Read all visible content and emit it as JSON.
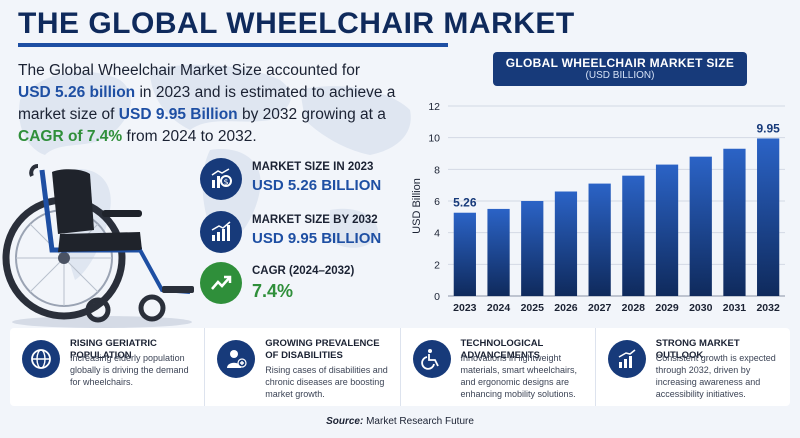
{
  "title": "THE GLOBAL WHEELCHAIR MARKET",
  "intro": {
    "p1": "The Global Wheelchair Market Size accounted for",
    "v1": "USD 5.26 billion",
    "p2": " in 2023 and is estimated to achieve a market size of ",
    "v2": "USD 9.95 Billion",
    "p3": " by 2032 growing at a ",
    "v3": "CAGR of 7.4%",
    "p4": " from 2024 to 2032."
  },
  "stats": [
    {
      "label": "MARKET SIZE IN 2023",
      "value": "USD 5.26 BILLION",
      "icon": "money-chart-icon",
      "color": "#173a7a"
    },
    {
      "label": "MARKET SIZE BY 2032",
      "value": "USD 9.95 BILLION",
      "icon": "growth-chart-icon",
      "color": "#173a7a"
    },
    {
      "label": "CAGR (2024–2032)",
      "value": "7.4%",
      "icon": "trend-up-icon",
      "color": "#2f8f3a"
    }
  ],
  "chart_header": {
    "title": "GLOBAL WHEELCHAIR MARKET SIZE",
    "subtitle": "(USD BILLION)"
  },
  "chart_data": {
    "type": "bar",
    "categories": [
      "2023",
      "2024",
      "2025",
      "2026",
      "2027",
      "2028",
      "2029",
      "2030",
      "2031",
      "2032"
    ],
    "values": [
      5.26,
      5.5,
      6.0,
      6.6,
      7.1,
      7.6,
      8.3,
      8.8,
      9.3,
      9.95
    ],
    "labels": {
      "0": "5.26",
      "9": "9.95"
    },
    "title": "GLOBAL WHEELCHAIR MARKET SIZE",
    "xlabel": "",
    "ylabel": "USD Billion",
    "ylim": [
      0,
      12
    ],
    "yticks": [
      "0",
      "2",
      "4",
      "6",
      "8",
      "10",
      "12"
    ],
    "grid": true,
    "bar_color_top": "#2b63c6",
    "bar_color_bottom": "#0f2a5c"
  },
  "features": [
    {
      "title": "RISING GERIATRIC POPULATION",
      "desc": "Increasing elderly population globally is driving the demand for wheelchairs.",
      "icon": "globe-icon"
    },
    {
      "title": "GROWING PREVALENCE OF DISABILITIES",
      "desc": "Rising cases of disabilities and chronic diseases are boosting market growth.",
      "icon": "person-medical-icon"
    },
    {
      "title": "TECHNOLOGICAL ADVANCEMENTS",
      "desc": "Innovations in lightweight materials, smart wheelchairs, and ergonomic designs are enhancing mobility solutions.",
      "icon": "wheelchair-icon"
    },
    {
      "title": "STRONG MARKET OUTLOOK",
      "desc": "Consistent growth is expected through 2032, driven by increasing awareness and accessibility initiatives.",
      "icon": "bar-growth-icon"
    }
  ],
  "source": {
    "label": "Source:",
    "text": "Market Research Future"
  }
}
